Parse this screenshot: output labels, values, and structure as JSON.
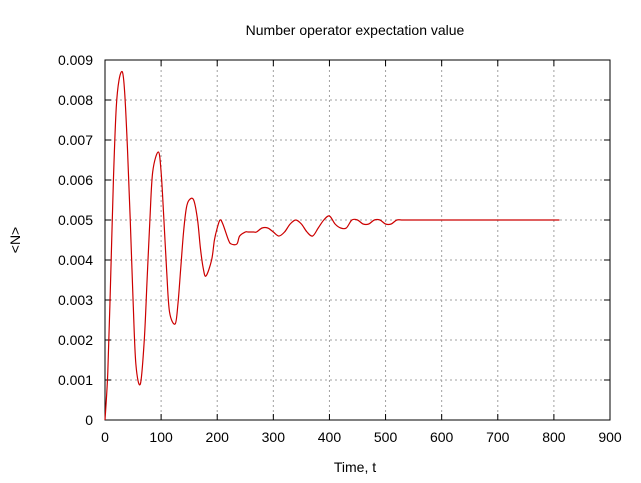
{
  "chart_data": {
    "type": "line",
    "title": "Number operator expectation value",
    "xlabel": "Time, t",
    "ylabel": "<N>",
    "xlim": [
      0,
      900
    ],
    "ylim": [
      0,
      0.009
    ],
    "xticks": [
      "0",
      "100",
      "200",
      "300",
      "400",
      "500",
      "600",
      "700",
      "800",
      "900"
    ],
    "yticks": [
      "0",
      "0.001",
      "0.002",
      "0.003",
      "0.004",
      "0.005",
      "0.006",
      "0.007",
      "0.008",
      "0.009"
    ],
    "grid": true,
    "series": [
      {
        "color": "#cc0000",
        "x": [
          0,
          5,
          10,
          15,
          20,
          25,
          31,
          35,
          40,
          45,
          50,
          55,
          63,
          70,
          75,
          80,
          85,
          95,
          100,
          105,
          110,
          115,
          125,
          130,
          135,
          140,
          145,
          150,
          158,
          165,
          170,
          175,
          180,
          190,
          195,
          200,
          205,
          210,
          220,
          225,
          235,
          240,
          250,
          255,
          265,
          270,
          280,
          290,
          300,
          310,
          320,
          330,
          340,
          350,
          360,
          370,
          380,
          390,
          400,
          410,
          420,
          430,
          440,
          450,
          460,
          470,
          480,
          490,
          500,
          510,
          520,
          530,
          540,
          550,
          560,
          570,
          580,
          590,
          600,
          610,
          620,
          630,
          640,
          650,
          660,
          670,
          680,
          690,
          700,
          710,
          720,
          730,
          740,
          750,
          760,
          770,
          780,
          790,
          800,
          810
        ],
        "y": [
          0.0,
          0.0012,
          0.0035,
          0.006,
          0.0078,
          0.0085,
          0.0087,
          0.0082,
          0.0068,
          0.005,
          0.003,
          0.0014,
          0.0009,
          0.002,
          0.0035,
          0.005,
          0.0062,
          0.0067,
          0.0062,
          0.005,
          0.0037,
          0.0027,
          0.0024,
          0.0029,
          0.0038,
          0.0047,
          0.0053,
          0.0055,
          0.0055,
          0.005,
          0.0043,
          0.0038,
          0.0036,
          0.004,
          0.0045,
          0.0048,
          0.005,
          0.0049,
          0.0045,
          0.0044,
          0.0044,
          0.0046,
          0.0047,
          0.0047,
          0.0047,
          0.0047,
          0.0048,
          0.0048,
          0.0047,
          0.0046,
          0.0047,
          0.0049,
          0.005,
          0.0049,
          0.0047,
          0.0046,
          0.0048,
          0.005,
          0.0051,
          0.0049,
          0.0048,
          0.0048,
          0.005,
          0.005,
          0.0049,
          0.0049,
          0.005,
          0.005,
          0.0049,
          0.0049,
          0.005,
          0.005,
          0.005,
          0.005,
          0.005,
          0.005,
          0.005,
          0.005,
          0.005,
          0.005,
          0.005,
          0.005,
          0.005,
          0.005,
          0.005,
          0.005,
          0.005,
          0.005,
          0.005,
          0.005,
          0.005,
          0.005,
          0.005,
          0.005,
          0.005,
          0.005,
          0.005,
          0.005,
          0.005,
          0.005
        ]
      }
    ]
  }
}
